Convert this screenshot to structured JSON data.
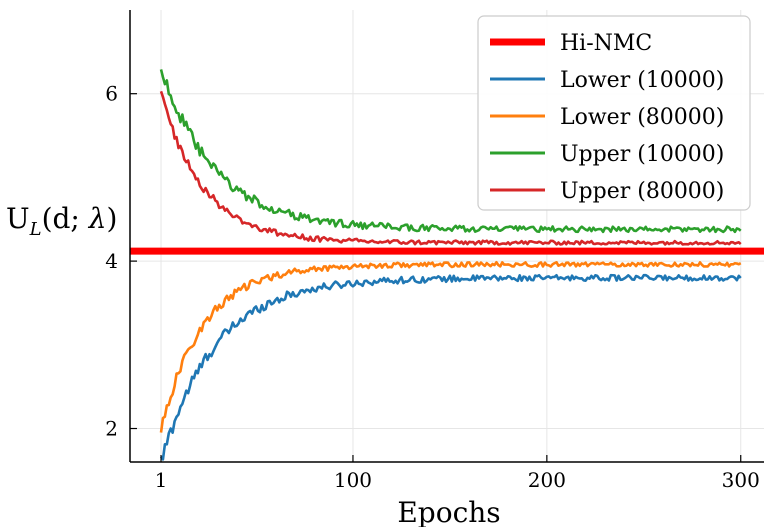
{
  "chart_data": {
    "type": "line",
    "title": "",
    "xlabel": "Epochs",
    "ylabel_main": "U",
    "ylabel_sub": "L",
    "ylabel_rest_1": "(d; ",
    "ylabel_lambda": "λ",
    "ylabel_rest_2": ")",
    "xlim": [
      -15,
      312
    ],
    "ylim": [
      1.6,
      7.0
    ],
    "xticks": [
      1,
      100,
      200,
      300
    ],
    "yticks": [
      2,
      4,
      6
    ],
    "xtick_labels": [
      "1",
      "100",
      "200",
      "300"
    ],
    "ytick_labels": [
      "2",
      "4",
      "6"
    ],
    "grid": true,
    "legend_position": "top-right",
    "hline": {
      "name": "Hi-NMC",
      "value": 4.12,
      "color": "#ff0000"
    },
    "series": [
      {
        "name": "Lower (10000)",
        "color": "#1f77b4",
        "start": 1.6,
        "end": 3.8,
        "tau": 28,
        "noise": 0.09
      },
      {
        "name": "Lower (80000)",
        "color": "#ff7f0e",
        "start": 2.0,
        "end": 3.96,
        "tau": 22,
        "noise": 0.07
      },
      {
        "name": "Upper (10000)",
        "color": "#2ca02c",
        "start": 6.3,
        "end": 4.38,
        "tau": 28,
        "noise": 0.09
      },
      {
        "name": "Upper (80000)",
        "color": "#d62728",
        "start": 6.0,
        "end": 4.22,
        "tau": 22,
        "noise": 0.06
      }
    ]
  }
}
